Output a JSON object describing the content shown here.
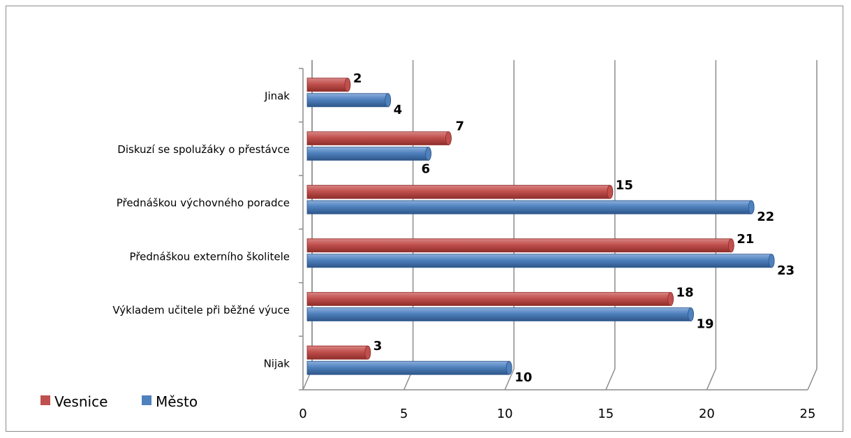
{
  "chart_data": {
    "type": "bar",
    "orientation": "horizontal",
    "style": "3d-cylinder",
    "title": "",
    "xlabel": "",
    "ylabel": "",
    "categories": [
      "Nijak",
      "Výkladem učitele při běžné výuce",
      "Přednáškou externího školitele",
      "Přednáškou výchovného poradce",
      "Diskuzí se spolužáky o přestávce",
      "Jinak"
    ],
    "series": [
      {
        "name": "Vesnice",
        "color": "#c0504d",
        "values": [
          3,
          18,
          21,
          15,
          7,
          2
        ]
      },
      {
        "name": "Město",
        "color": "#4f81bd",
        "values": [
          10,
          19,
          23,
          22,
          6,
          4
        ]
      }
    ],
    "xlim": [
      0,
      25
    ],
    "xticks": [
      "0",
      "5",
      "10",
      "15",
      "20",
      "25"
    ],
    "grid": true,
    "data_labels": true,
    "legend_position": "bottom-left"
  }
}
